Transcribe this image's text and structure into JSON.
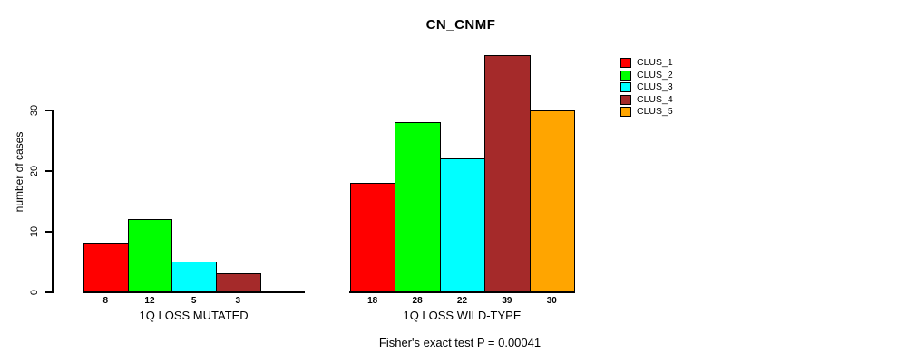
{
  "chart_data": {
    "type": "bar",
    "title": "CN_CNMF",
    "ylabel": "number of cases",
    "xlabel": "",
    "yticks": [
      0,
      10,
      20,
      30
    ],
    "ylim": [
      0,
      39
    ],
    "grid": false,
    "legend_position": "right",
    "footnote": "Fisher's exact test P = 0.00041",
    "series_colors": [
      "#FF0000",
      "#00FF00",
      "#00FFFF",
      "#A52A2A",
      "#FFA500"
    ],
    "legend": [
      {
        "label": "CLUS_1",
        "color": "#FF0000"
      },
      {
        "label": "CLUS_2",
        "color": "#00FF00"
      },
      {
        "label": "CLUS_3",
        "color": "#00FFFF"
      },
      {
        "label": "CLUS_4",
        "color": "#A52A2A"
      },
      {
        "label": "CLUS_5",
        "color": "#FFA500"
      }
    ],
    "groups": [
      {
        "label": "1Q LOSS MUTATED",
        "values": [
          8,
          12,
          5,
          3,
          null
        ]
      },
      {
        "label": "1Q LOSS WILD-TYPE",
        "values": [
          18,
          28,
          22,
          39,
          30
        ]
      }
    ]
  }
}
